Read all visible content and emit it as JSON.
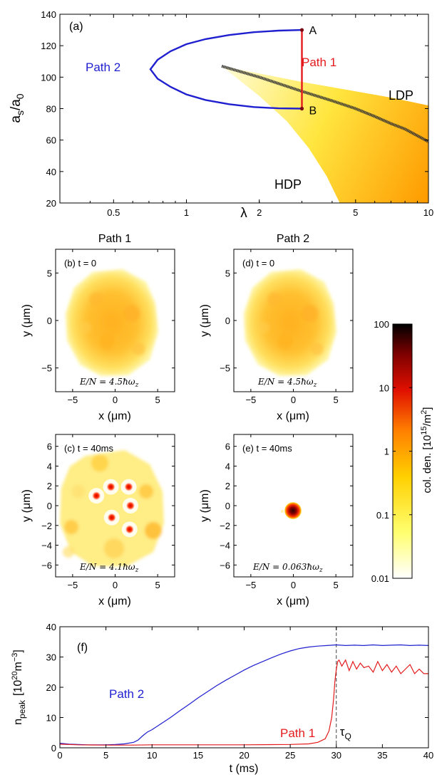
{
  "chart_data": [
    {
      "panel": "(a)",
      "type": "line",
      "xlabel": "λ",
      "ylabel_main": "a",
      "ylabel_sub1": "s",
      "ylabel_mid": "/a",
      "ylabel_sub2": "0",
      "xscale": "log",
      "xlim": [
        0.3,
        10
      ],
      "ylim": [
        20,
        140
      ],
      "xticks": [
        0.5,
        1,
        2,
        5,
        10
      ],
      "xtick_labels": [
        "0.5",
        "1",
        "2",
        "5",
        "10"
      ],
      "yticks": [
        20,
        40,
        60,
        80,
        100,
        120,
        140
      ],
      "ytick_labels": [
        "20",
        "40",
        "60",
        "80",
        "100",
        "120",
        "140"
      ],
      "point_labels": {
        "A": "A",
        "B": "B"
      },
      "points": {
        "A": [
          3.0,
          130
        ],
        "B": [
          3.0,
          80
        ]
      },
      "region_labels": {
        "ldp": "LDP",
        "hdp": "HDP"
      },
      "path_labels": {
        "path1": "Path 1",
        "path2": "Path 2"
      },
      "colors": {
        "path1": "#e41a1c",
        "path2": "#1f1fd0",
        "boundary": "#333333",
        "region_light": "#fff7b0",
        "region_dark": "#ff9900"
      },
      "series": [
        {
          "name": "Path 2",
          "color": "#1f1fd0",
          "x": [
            3.0,
            2.4,
            1.9,
            1.5,
            1.2,
            1.0,
            0.86,
            0.76,
            0.71,
            0.76,
            0.86,
            1.0,
            1.2,
            1.5,
            1.9,
            2.4,
            3.0
          ],
          "y": [
            130,
            129.6,
            128.6,
            126.8,
            124.2,
            121.0,
            116.5,
            111.0,
            105.0,
            99.0,
            93.8,
            89.0,
            85.5,
            82.8,
            81.0,
            80.2,
            80
          ]
        },
        {
          "name": "Path 1",
          "color": "#e41a1c",
          "x": [
            3.0,
            3.0
          ],
          "y": [
            130,
            80
          ]
        },
        {
          "name": "boundary",
          "color": "#333333",
          "x": [
            1.4,
            2.0,
            3.0,
            4.0,
            5.0,
            6.0,
            7.0,
            8.0,
            10.0
          ],
          "y": [
            107,
            100,
            91,
            85,
            80,
            75,
            70.5,
            67,
            59
          ]
        }
      ],
      "region": {
        "upper": {
          "x": [
            1.4,
            2.0,
            3.0,
            4.0,
            5.0,
            6.0,
            7.0,
            8.0,
            10.0
          ],
          "y": [
            107,
            100,
            91,
            85,
            80,
            75,
            70.5,
            67,
            59
          ]
        },
        "top": {
          "x": [
            1.4,
            3.0,
            5.0,
            7.0,
            10.0
          ],
          "y": [
            107,
            97,
            91,
            87,
            82
          ]
        },
        "lower": {
          "x": [
            1.4,
            2.0,
            2.6,
            3.2,
            3.8,
            4.3
          ],
          "y": [
            107,
            88,
            72,
            55,
            37,
            20
          ]
        }
      }
    },
    {
      "panel": "density_maps",
      "type": "heatmap",
      "column_titles": [
        "Path 1",
        "Path 2"
      ],
      "xlabel": "x (μm)",
      "ylabel": "y (μm)",
      "ticks_top": [
        "−5",
        "0",
        "5"
      ],
      "ticks_top_values": [
        -5,
        0,
        5
      ],
      "ticks_bottom_y": [
        "−6",
        "−4",
        "−2",
        "0",
        "2",
        "4",
        "6"
      ],
      "ticks_bottom_y_values": [
        -6,
        -4,
        -2,
        0,
        2,
        4,
        6
      ],
      "panels": [
        {
          "label": "(b) t = 0",
          "energy": "E/N = 4.5ħω",
          "energy_sub": "z",
          "state": "uniform"
        },
        {
          "label": "(d) t = 0",
          "energy": "E/N = 4.5ħω",
          "energy_sub": "z",
          "state": "uniform"
        },
        {
          "label": "(c) t = 40ms",
          "energy": "E/N = 4.1ħω",
          "energy_sub": "z",
          "state": "vortices",
          "vortices": [
            [
              -2.2,
              1.0
            ],
            [
              -0.5,
              1.9
            ],
            [
              1.6,
              1.9
            ],
            [
              -0.4,
              -1.2
            ],
            [
              1.8,
              0.0
            ],
            [
              1.7,
              -2.4
            ]
          ]
        },
        {
          "label": "(e) t = 40ms",
          "energy": "E/N = 0.063ħω",
          "energy_sub": "z",
          "state": "collapsed"
        }
      ],
      "colorbar": {
        "scale": "log",
        "range": [
          0.01,
          100
        ],
        "tick_labels": [
          "100",
          "10",
          "1",
          "0.1",
          "0.01"
        ],
        "tick_values": [
          100,
          10,
          1,
          0.1,
          0.01
        ],
        "label": "col. den. [10",
        "label_sup": "15",
        "label_mid": "/m",
        "label_sup2": "2",
        "label_end": "]",
        "colors": [
          "#ffffff",
          "#ffff40",
          "#ffb000",
          "#ff5000",
          "#d00000",
          "#800000",
          "#000000"
        ]
      }
    },
    {
      "panel": "(f)",
      "type": "line",
      "xlabel": "t (ms)",
      "ylabel_main": "n",
      "ylabel_sub": "peak",
      "ylabel_unit": "[10",
      "ylabel_sup": "20",
      "ylabel_unit2": "m",
      "ylabel_sup2": "−3",
      "ylabel_end": "]",
      "xlim": [
        0,
        40
      ],
      "ylim": [
        0,
        40
      ],
      "xticks": [
        0,
        5,
        10,
        15,
        20,
        25,
        30,
        35,
        40
      ],
      "xtick_labels": [
        "0",
        "5",
        "10",
        "15",
        "20",
        "25",
        "30",
        "35",
        "40"
      ],
      "yticks": [
        0,
        10,
        20,
        30,
        40
      ],
      "ytick_labels": [
        "0",
        "10",
        "20",
        "30",
        "40"
      ],
      "tau_label": "τ",
      "tau_sub": "Q",
      "tau_x": 30,
      "path_labels": {
        "path1": "Path 1",
        "path2": "Path 2"
      },
      "series": [
        {
          "name": "Path 2",
          "color": "#1f1fd0",
          "x": [
            0,
            1,
            2,
            3,
            4,
            5,
            6,
            7,
            8,
            8.5,
            9,
            9.5,
            10,
            11,
            12,
            13,
            14,
            15,
            16,
            17,
            18,
            19,
            20,
            21,
            22,
            23,
            24,
            25,
            26,
            27,
            28,
            29,
            30,
            31,
            32,
            33,
            34,
            35,
            36,
            37,
            38,
            39,
            40
          ],
          "y": [
            1.5,
            1.2,
            1.1,
            1.0,
            1.0,
            1.0,
            1.1,
            1.3,
            1.8,
            2.6,
            4.0,
            5.2,
            6.0,
            8.0,
            10.0,
            12.2,
            14.3,
            16.5,
            18.5,
            20.5,
            22.3,
            24.0,
            25.7,
            27.2,
            28.5,
            29.8,
            31.0,
            32.0,
            32.8,
            33.3,
            33.6,
            33.8,
            34.0,
            33.8,
            33.9,
            33.8,
            34.0,
            33.8,
            33.9,
            34.0,
            33.8,
            33.9,
            33.8
          ]
        },
        {
          "name": "Path 1",
          "color": "#e41a1c",
          "x": [
            0,
            2,
            5,
            8,
            10,
            15,
            20,
            25,
            27,
            28,
            28.8,
            29.2,
            29.5,
            29.7,
            29.85,
            30.0,
            30.15,
            30.3,
            30.6,
            31.0,
            31.4,
            31.8,
            32.2,
            32.6,
            33.0,
            33.5,
            34.0,
            34.5,
            35.0,
            35.5,
            36.0,
            36.5,
            37.0,
            37.5,
            38.0,
            38.5,
            39.0,
            39.5,
            40.0
          ],
          "y": [
            1.2,
            1.0,
            0.9,
            0.9,
            1.0,
            1.0,
            1.0,
            1.1,
            1.3,
            1.8,
            3.0,
            5.5,
            10.0,
            16.0,
            22.0,
            26.0,
            28.5,
            29.0,
            27.0,
            29.0,
            25.5,
            28.5,
            26.0,
            28.0,
            26.5,
            27.0,
            25.0,
            28.5,
            25.5,
            27.5,
            25.0,
            27.0,
            24.5,
            26.0,
            27.5,
            24.5,
            26.0,
            24.5,
            24.5
          ]
        }
      ]
    }
  ]
}
